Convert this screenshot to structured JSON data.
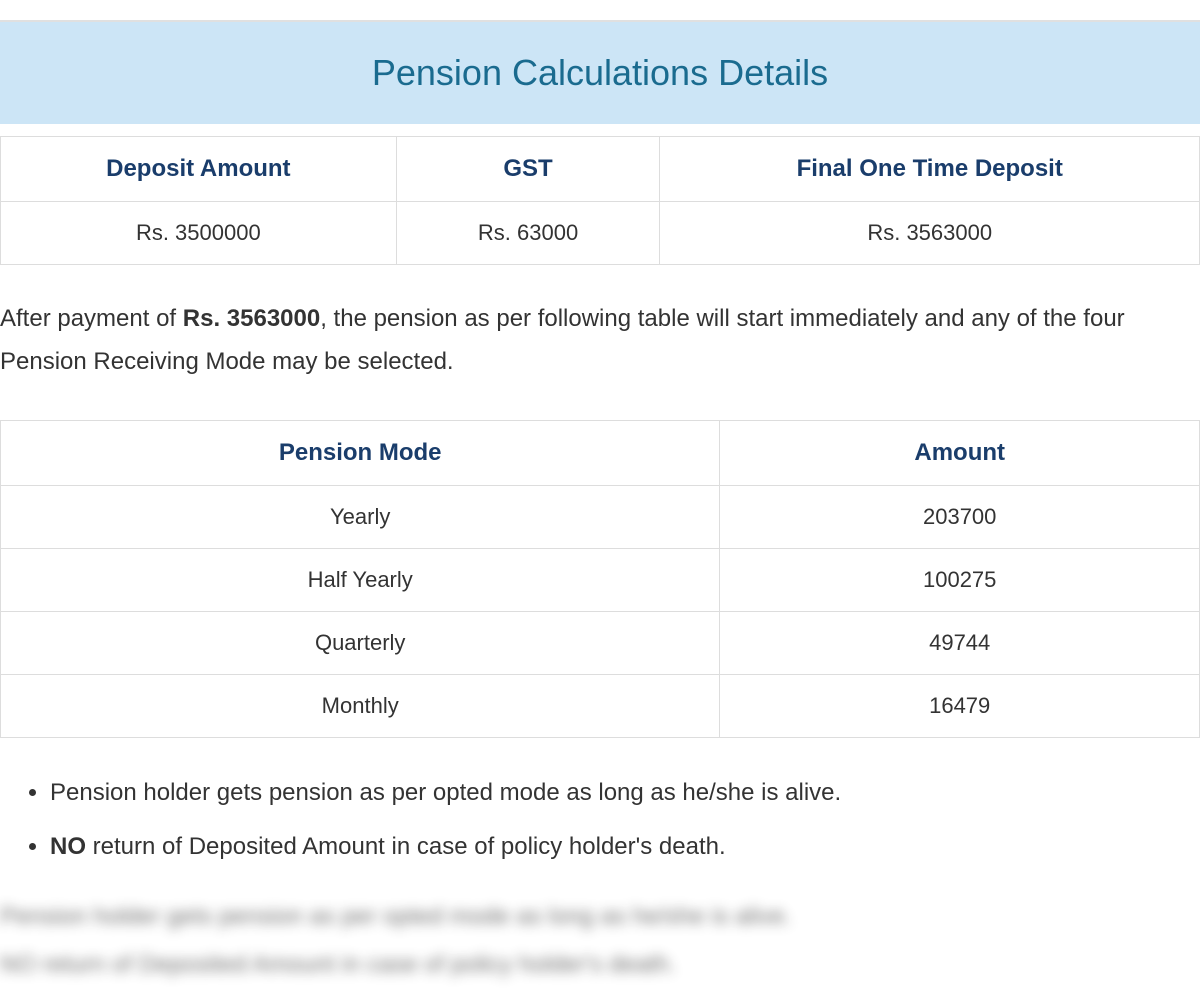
{
  "title": "Pension Calculations Details",
  "depositTable": {
    "headers": [
      "Deposit Amount",
      "GST",
      "Final One Time Deposit"
    ],
    "row": [
      "Rs. 3500000",
      "Rs. 63000",
      "Rs. 3563000"
    ]
  },
  "description": {
    "prefix": "After payment of ",
    "boldAmount": "Rs. 3563000",
    "suffix": ", the pension as per following table will start immediately and any of the four Pension Receiving Mode may be selected."
  },
  "pensionTable": {
    "headers": [
      "Pension Mode",
      "Amount"
    ],
    "rows": [
      [
        "Yearly",
        "203700"
      ],
      [
        "Half Yearly",
        "100275"
      ],
      [
        "Quarterly",
        "49744"
      ],
      [
        "Monthly",
        "16479"
      ]
    ]
  },
  "notes": [
    {
      "text": "Pension holder gets pension as per opted mode as long as he/she is alive.",
      "boldWord": ""
    },
    {
      "text": " return of Deposited Amount in case of policy holder's death.",
      "boldWord": "NO"
    }
  ],
  "blurredLines": [
    "Pension holder gets pension as per opted mode as long as he/she is alive.",
    "NO return of Deposited Amount in case of policy holder's death."
  ],
  "colors": {
    "headerBg": "#cce5f6",
    "titleColor": "#1a6b8f",
    "thColor": "#1a3d6b",
    "borderColor": "#ddd",
    "textColor": "#333"
  }
}
